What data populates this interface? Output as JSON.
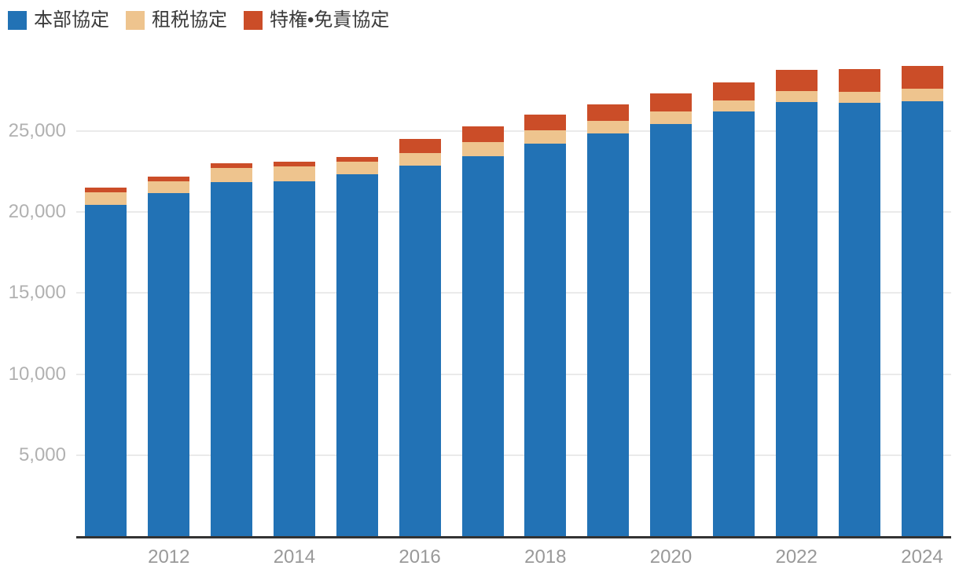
{
  "chart_data": {
    "type": "bar",
    "stacked": true,
    "title": "",
    "xlabel": "",
    "ylabel": "",
    "categories": [
      2011,
      2012,
      2013,
      2014,
      2015,
      2016,
      2017,
      2018,
      2019,
      2020,
      2021,
      2022,
      2023,
      2024
    ],
    "series": [
      {
        "name": "本部協定",
        "color": "#2272b5",
        "values": [
          20460,
          21170,
          21850,
          21915,
          22320,
          22870,
          23440,
          24210,
          24860,
          25425,
          26200,
          26780,
          26750,
          26830
        ]
      },
      {
        "name": "租税協定",
        "color": "#eec48e",
        "values": [
          760,
          710,
          855,
          900,
          790,
          775,
          870,
          840,
          775,
          775,
          665,
          695,
          645,
          760
        ]
      },
      {
        "name": "特権•免責協定",
        "color": "#cb4d28",
        "values": [
          280,
          310,
          290,
          275,
          290,
          870,
          970,
          935,
          1000,
          1130,
          1130,
          1270,
          1400,
          1440
        ]
      }
    ],
    "ylim": [
      0,
      30000
    ],
    "yticks": [
      {
        "value": 5000,
        "label": "5,000"
      },
      {
        "value": 10000,
        "label": "10,000"
      },
      {
        "value": 15000,
        "label": "15,000"
      },
      {
        "value": 20000,
        "label": "20,000"
      },
      {
        "value": 25000,
        "label": "25,000"
      }
    ],
    "xticks": [
      {
        "year": 2012,
        "label": "2012"
      },
      {
        "year": 2014,
        "label": "2014"
      },
      {
        "year": 2016,
        "label": "2016"
      },
      {
        "year": 2018,
        "label": "2018"
      },
      {
        "year": 2020,
        "label": "2020"
      },
      {
        "year": 2022,
        "label": "2022"
      },
      {
        "year": 2024,
        "label": "2024"
      }
    ],
    "grid": true,
    "legend_position": "top-left"
  },
  "colors": {
    "background": "#ffffff",
    "gridline": "#eaeaea",
    "axis_line": "#333333",
    "y_tick_label": "#b1b1b1",
    "x_tick_label": "#999999",
    "legend_text": "#3a3a3a"
  }
}
